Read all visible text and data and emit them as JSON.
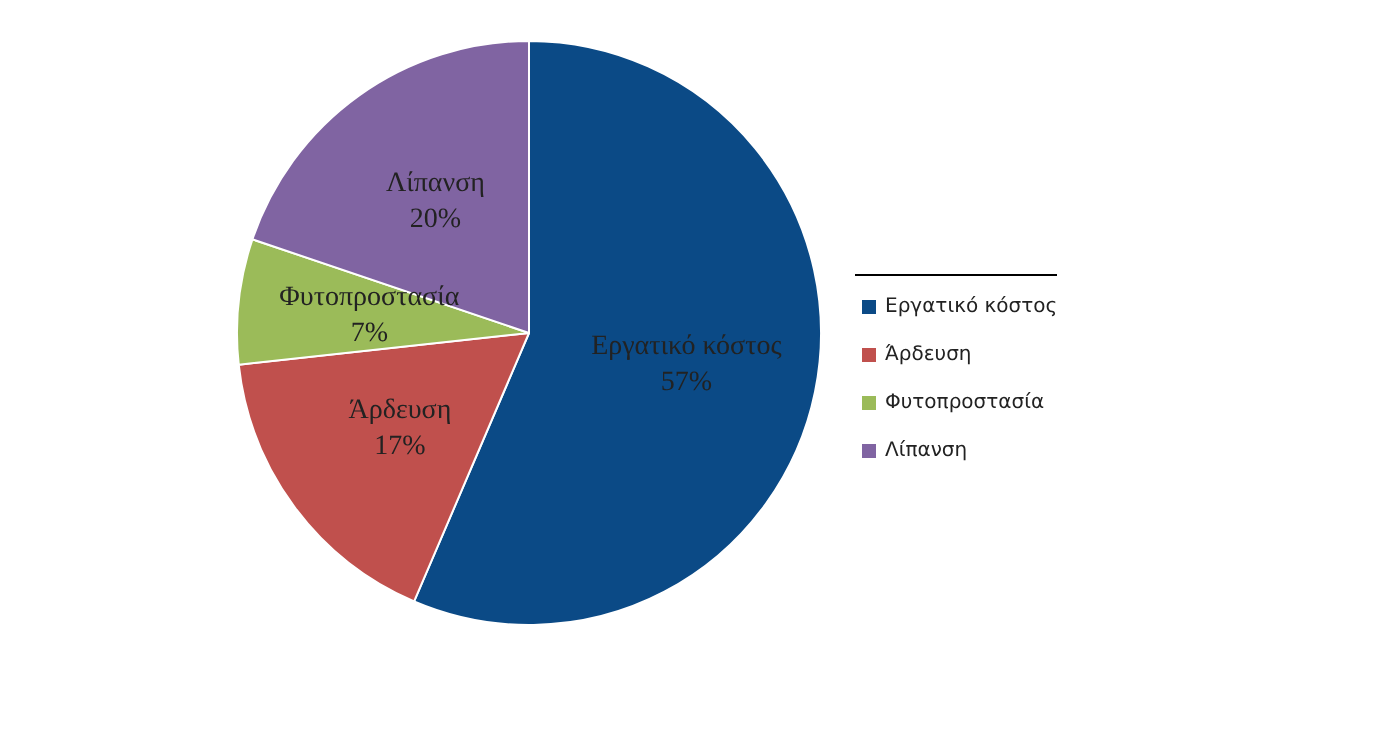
{
  "chart_data": {
    "type": "pie",
    "categories": [
      "Εργατικό κόστος",
      "Άρδευση",
      "Φυτοπροστασία",
      "Λίπανση"
    ],
    "values": [
      57,
      17,
      7,
      20
    ],
    "value_labels": [
      "57%",
      "17%",
      "7%",
      "20%"
    ],
    "colors": [
      "#0b4a86",
      "#c0504d",
      "#9bbb59",
      "#8064a2"
    ],
    "legend": "right"
  }
}
